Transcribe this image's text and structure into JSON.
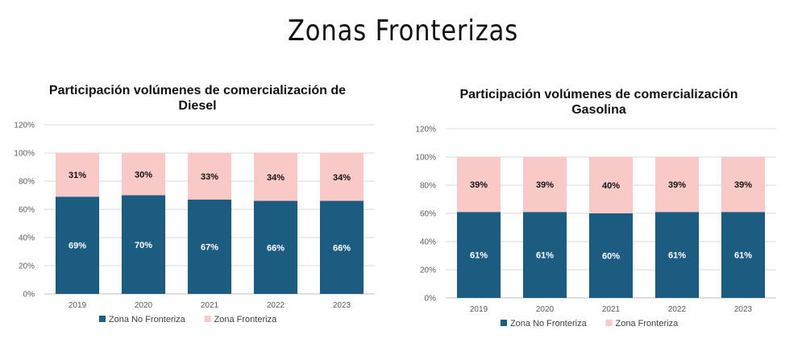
{
  "page": {
    "title": "Zonas Fronterizas"
  },
  "chart_data": [
    {
      "type": "bar",
      "stacked": true,
      "title_lines": [
        "Participación volúmenes de comercialización de",
        "Diesel"
      ],
      "xlabel": "",
      "ylabel": "",
      "categories": [
        "2019",
        "2020",
        "2021",
        "2022",
        "2023"
      ],
      "y_ticks": [
        "0%",
        "20%",
        "40%",
        "60%",
        "80%",
        "100%",
        "120%"
      ],
      "ylim": [
        0,
        120
      ],
      "series": [
        {
          "name": "Zona No Fronteriza",
          "values": [
            69,
            70,
            67,
            66,
            66
          ],
          "labels": [
            "69%",
            "70%",
            "67%",
            "66%",
            "66%"
          ],
          "color": "#1b5c80",
          "label_color": "#ffffff"
        },
        {
          "name": "Zona Fronteriza",
          "values": [
            31,
            30,
            33,
            34,
            34
          ],
          "labels": [
            "31%",
            "30%",
            "33%",
            "34%",
            "34%"
          ],
          "color": "#f9c9c8",
          "label_color": "#111111"
        }
      ],
      "grid": true,
      "legend": "bottom"
    },
    {
      "type": "bar",
      "stacked": true,
      "title_lines": [
        "Participación volúmenes de comercialización",
        "Gasolina"
      ],
      "xlabel": "",
      "ylabel": "",
      "categories": [
        "2019",
        "2020",
        "2021",
        "2022",
        "2023"
      ],
      "y_ticks": [
        "0%",
        "20%",
        "40%",
        "60%",
        "80%",
        "100%",
        "120%"
      ],
      "ylim": [
        0,
        120
      ],
      "series": [
        {
          "name": "Zona No Fronteriza",
          "values": [
            61,
            61,
            60,
            61,
            61
          ],
          "labels": [
            "61%",
            "61%",
            "60%",
            "61%",
            "61%"
          ],
          "color": "#1b5c80",
          "label_color": "#ffffff"
        },
        {
          "name": "Zona Fronteriza",
          "values": [
            39,
            39,
            40,
            39,
            39
          ],
          "labels": [
            "39%",
            "39%",
            "40%",
            "39%",
            "39%"
          ],
          "color": "#f9c9c8",
          "label_color": "#111111"
        }
      ],
      "grid": true,
      "legend": "bottom"
    }
  ]
}
